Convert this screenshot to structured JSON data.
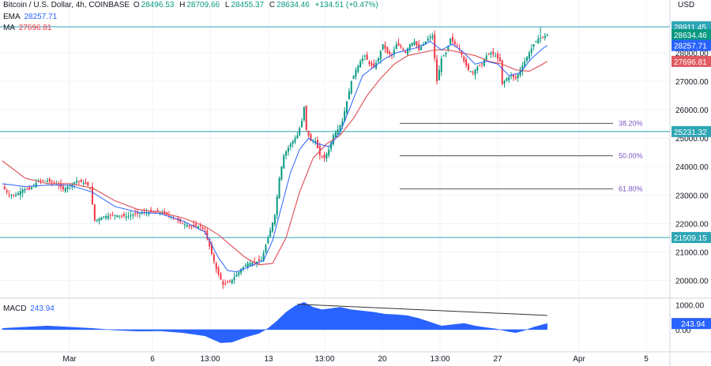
{
  "header": {
    "title": "Bitcoin / U.S. Dollar, 4h, COINBASE",
    "ohlc": [
      {
        "k": "O",
        "v": "28496.53"
      },
      {
        "k": "H",
        "v": "28709.66"
      },
      {
        "k": "L",
        "v": "28455.37"
      },
      {
        "k": "C",
        "v": "28634.46"
      }
    ],
    "change": "+134.51 (+0.47%)",
    "currency": "USD",
    "ema_label": "EMA",
    "ema_value": "28257.71",
    "ma_label": "MA",
    "ma_value": "27696.81",
    "macd_label": "MACD",
    "macd_value": "243.94"
  },
  "colors": {
    "up": "#089981",
    "down": "#f23645",
    "ema": "#2962ff",
    "ma": "#e0595f",
    "level": "#2ea6b5",
    "fib": "#555555",
    "macd": "#2962ff",
    "grid": "#f0f3fa",
    "axis_text": "#131722",
    "fib_text": "#7e57c2"
  },
  "chart_data": [
    {
      "type": "candlestick",
      "title": "Bitcoin / U.S. Dollar, 4h, COINBASE",
      "symbol": "BTCUSD",
      "timeframe": "4h",
      "x_ticks": [
        "Mar",
        "6",
        "13:00",
        "13",
        "13:00",
        "20",
        "13:00",
        "27",
        "Apr",
        "5"
      ],
      "y_ticks": [
        "20000.00",
        "21000.00",
        "22000.00",
        "23000.00",
        "24000.00",
        "25000.00",
        "26000.00",
        "27000.00",
        "28000.00"
      ],
      "y_range": [
        19600,
        29300
      ],
      "price_labels": [
        {
          "value": 28911.45,
          "text": "28911.45",
          "color": "#2ea6b5"
        },
        {
          "value": 28634.46,
          "text": "28634.46",
          "color": "#089981"
        },
        {
          "value": 28257.71,
          "text": "28257.71",
          "color": "#2962ff"
        },
        {
          "value": 27696.81,
          "text": "27696.81",
          "color": "#e0595f"
        },
        {
          "value": 25231.32,
          "text": "25231.32",
          "color": "#2ea6b5"
        },
        {
          "value": 21509.15,
          "text": "21509.15",
          "color": "#2ea6b5"
        }
      ],
      "horizontal_levels": [
        28911.45,
        25231.32,
        21509.15
      ],
      "fib_levels": [
        {
          "label": "38.20%",
          "value": 25520
        },
        {
          "label": "50.00%",
          "value": 24380
        },
        {
          "label": "61.80%",
          "value": 23220
        }
      ],
      "price_path": [
        [
          0,
          23300
        ],
        [
          3,
          23000
        ],
        [
          6,
          23000
        ],
        [
          9,
          23200
        ],
        [
          12,
          23200
        ],
        [
          16,
          23500
        ],
        [
          20,
          23500
        ],
        [
          24,
          23400
        ],
        [
          27,
          23200
        ],
        [
          31,
          23400
        ],
        [
          33,
          23500
        ],
        [
          35,
          23450
        ],
        [
          37,
          23400
        ],
        [
          39,
          23250
        ],
        [
          41,
          22100
        ],
        [
          45,
          22250
        ],
        [
          50,
          22300
        ],
        [
          55,
          22250
        ],
        [
          60,
          22350
        ],
        [
          65,
          22400
        ],
        [
          70,
          22400
        ],
        [
          75,
          22250
        ],
        [
          80,
          22000
        ],
        [
          84,
          21900
        ],
        [
          88,
          21900
        ],
        [
          90,
          21700
        ],
        [
          92,
          21200
        ],
        [
          95,
          20400
        ],
        [
          98,
          19850
        ],
        [
          101,
          19950
        ],
        [
          104,
          20200
        ],
        [
          106,
          20400
        ],
        [
          109,
          20600
        ],
        [
          112,
          20650
        ],
        [
          115,
          20700
        ],
        [
          118,
          21500
        ],
        [
          121,
          22300
        ],
        [
          123,
          23600
        ],
        [
          125,
          24400
        ],
        [
          128,
          24800
        ],
        [
          131,
          25100
        ],
        [
          133,
          25600
        ],
        [
          134,
          26100
        ],
        [
          135,
          25300
        ],
        [
          137,
          24900
        ],
        [
          139,
          24900
        ],
        [
          141,
          24400
        ],
        [
          143,
          24300
        ],
        [
          145,
          24600
        ],
        [
          147,
          25100
        ],
        [
          149,
          25300
        ],
        [
          151,
          25600
        ],
        [
          153,
          26300
        ],
        [
          155,
          27000
        ],
        [
          157,
          27400
        ],
        [
          159,
          27700
        ],
        [
          161,
          27900
        ],
        [
          163,
          27600
        ],
        [
          165,
          27500
        ],
        [
          167,
          27800
        ],
        [
          169,
          28300
        ],
        [
          171,
          28000
        ],
        [
          173,
          27900
        ],
        [
          175,
          28300
        ],
        [
          177,
          28200
        ],
        [
          179,
          28000
        ],
        [
          181,
          28300
        ],
        [
          183,
          28400
        ],
        [
          185,
          28100
        ],
        [
          187,
          28300
        ],
        [
          189,
          28500
        ],
        [
          191,
          28600
        ],
        [
          193,
          27000
        ],
        [
          195,
          27800
        ],
        [
          197,
          28000
        ],
        [
          199,
          28500
        ],
        [
          201,
          28300
        ],
        [
          203,
          28150
        ],
        [
          205,
          27700
        ],
        [
          207,
          27400
        ],
        [
          209,
          27300
        ],
        [
          211,
          27500
        ],
        [
          213,
          27600
        ],
        [
          215,
          27900
        ],
        [
          217,
          28000
        ],
        [
          219,
          27900
        ],
        [
          221,
          27700
        ],
        [
          222,
          26900
        ],
        [
          224,
          27100
        ],
        [
          226,
          27200
        ],
        [
          228,
          27100
        ],
        [
          230,
          27400
        ],
        [
          232,
          27700
        ],
        [
          234,
          28000
        ],
        [
          236,
          28300
        ],
        [
          238,
          28500
        ],
        [
          240,
          28550
        ],
        [
          242,
          28634
        ]
      ],
      "ema_path": [
        [
          0,
          23400
        ],
        [
          10,
          23300
        ],
        [
          20,
          23350
        ],
        [
          30,
          23350
        ],
        [
          40,
          23100
        ],
        [
          50,
          22600
        ],
        [
          60,
          22400
        ],
        [
          70,
          22350
        ],
        [
          80,
          22100
        ],
        [
          90,
          21700
        ],
        [
          96,
          20800
        ],
        [
          100,
          20350
        ],
        [
          104,
          20300
        ],
        [
          110,
          20500
        ],
        [
          116,
          20700
        ],
        [
          120,
          21400
        ],
        [
          124,
          22600
        ],
        [
          128,
          23800
        ],
        [
          132,
          24600
        ],
        [
          136,
          25000
        ],
        [
          140,
          24800
        ],
        [
          145,
          24700
        ],
        [
          150,
          25200
        ],
        [
          155,
          26200
        ],
        [
          160,
          27200
        ],
        [
          165,
          27500
        ],
        [
          170,
          27800
        ],
        [
          175,
          28000
        ],
        [
          180,
          28100
        ],
        [
          185,
          28200
        ],
        [
          190,
          28400
        ],
        [
          195,
          28100
        ],
        [
          200,
          28300
        ],
        [
          205,
          28000
        ],
        [
          210,
          27600
        ],
        [
          215,
          27700
        ],
        [
          220,
          27600
        ],
        [
          225,
          27200
        ],
        [
          230,
          27300
        ],
        [
          235,
          27800
        ],
        [
          240,
          28150
        ],
        [
          242,
          28257
        ]
      ],
      "ma_path": [
        [
          0,
          24200
        ],
        [
          10,
          23600
        ],
        [
          20,
          23400
        ],
        [
          30,
          23400
        ],
        [
          40,
          23250
        ],
        [
          50,
          22800
        ],
        [
          60,
          22500
        ],
        [
          70,
          22400
        ],
        [
          80,
          22200
        ],
        [
          90,
          21900
        ],
        [
          96,
          21600
        ],
        [
          102,
          21200
        ],
        [
          108,
          20800
        ],
        [
          114,
          20550
        ],
        [
          120,
          20600
        ],
        [
          126,
          21500
        ],
        [
          132,
          23100
        ],
        [
          138,
          24300
        ],
        [
          144,
          24800
        ],
        [
          150,
          25100
        ],
        [
          156,
          25700
        ],
        [
          162,
          26500
        ],
        [
          168,
          27100
        ],
        [
          174,
          27600
        ],
        [
          180,
          27900
        ],
        [
          186,
          28000
        ],
        [
          192,
          28100
        ],
        [
          198,
          28100
        ],
        [
          204,
          28000
        ],
        [
          210,
          27900
        ],
        [
          216,
          27700
        ],
        [
          222,
          27600
        ],
        [
          228,
          27400
        ],
        [
          234,
          27350
        ],
        [
          240,
          27600
        ],
        [
          242,
          27697
        ]
      ],
      "wick_spikes": [
        [
          239,
          28911.45
        ]
      ],
      "macd": {
        "y_ticks": [
          "1000.00",
          "0.00"
        ],
        "y_range": [
          -700,
          1200
        ],
        "label": "243.94",
        "histogram_path": [
          [
            0,
            50
          ],
          [
            10,
            100
          ],
          [
            20,
            150
          ],
          [
            30,
            100
          ],
          [
            40,
            50
          ],
          [
            50,
            -20
          ],
          [
            60,
            -60
          ],
          [
            70,
            -50
          ],
          [
            80,
            -120
          ],
          [
            90,
            -250
          ],
          [
            97,
            -530
          ],
          [
            102,
            -500
          ],
          [
            108,
            -300
          ],
          [
            114,
            -150
          ],
          [
            118,
            50
          ],
          [
            122,
            350
          ],
          [
            126,
            700
          ],
          [
            130,
            950
          ],
          [
            134,
            1100
          ],
          [
            138,
            900
          ],
          [
            142,
            800
          ],
          [
            146,
            850
          ],
          [
            150,
            900
          ],
          [
            155,
            800
          ],
          [
            160,
            750
          ],
          [
            165,
            700
          ],
          [
            170,
            620
          ],
          [
            175,
            600
          ],
          [
            180,
            560
          ],
          [
            185,
            450
          ],
          [
            190,
            300
          ],
          [
            195,
            150
          ],
          [
            200,
            200
          ],
          [
            205,
            250
          ],
          [
            210,
            150
          ],
          [
            215,
            80
          ],
          [
            220,
            20
          ],
          [
            225,
            -80
          ],
          [
            228,
            -120
          ],
          [
            232,
            -30
          ],
          [
            236,
            100
          ],
          [
            240,
            200
          ],
          [
            242,
            244
          ]
        ],
        "divergence_line": [
          [
            131,
            1020
          ],
          [
            242,
            570
          ]
        ]
      }
    }
  ]
}
